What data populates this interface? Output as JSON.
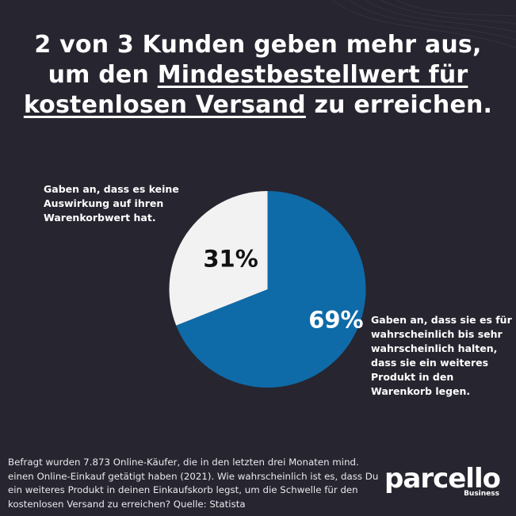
{
  "title": {
    "line1": "2 von 3 Kunden geben mehr aus,",
    "line2_prefix": "um den ",
    "line2_underlined": "Mindestbestellwert für",
    "line3_underlined": "kostenlosen Versand",
    "line3_suffix": " zu erreichen."
  },
  "annotations": {
    "left": "Gaben an, dass es keine Auswirkung auf ihren Warenkorbwert hat.",
    "right": "Gaben an, dass sie es für wahrscheinlich bis sehr wahrscheinlich halten, dass sie ein weiteres Produkt in den Warenkorb legen."
  },
  "footer": {
    "note": "Befragt wurden 7.873 Online-Käufer, die in den letzten drei Monaten mind. einen Online-Einkauf getätigt haben (2021). Wie wahrscheinlich ist es, dass Du ein weiteres Produkt in deinen Einkaufskorb legst, um die Schwelle für den kostenlosen Versand zu erreichen? Quelle: Statista"
  },
  "logo": {
    "word": "parcello",
    "sub": "Business"
  },
  "colors": {
    "background": "#27252f",
    "slice_major": "#0f6aa8",
    "slice_minor": "#f2f2f2",
    "text": "#ffffff"
  },
  "chart_data": {
    "type": "pie",
    "slices": [
      {
        "label": "69%",
        "value": 69,
        "color": "#0f6aa8",
        "text_color": "#ffffff"
      },
      {
        "label": "31%",
        "value": 31,
        "color": "#f2f2f2",
        "text_color": "#111111"
      }
    ]
  }
}
